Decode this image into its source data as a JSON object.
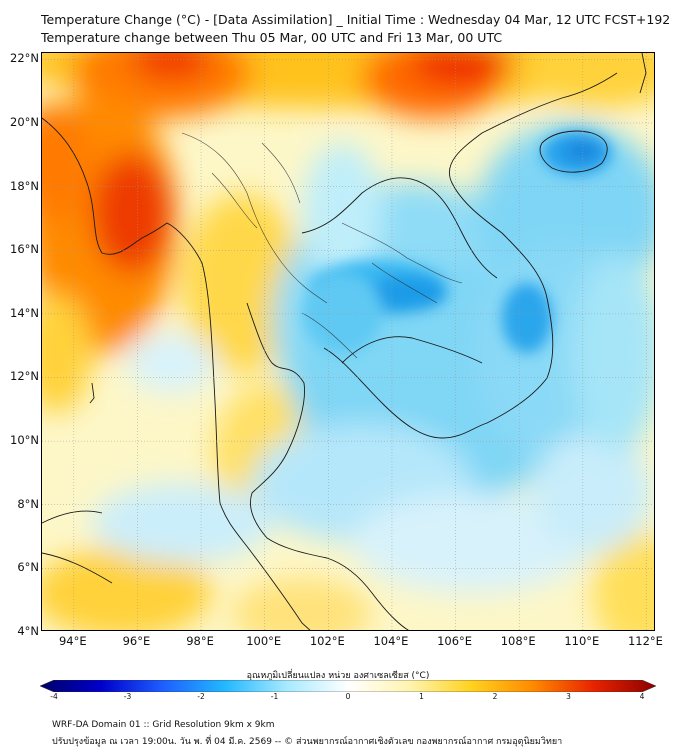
{
  "title": {
    "line1": "Temperature Change (°C) - [Data Assimilation] _ Initial Time : Wednesday 04 Mar, 12 UTC FCST+192",
    "line2": "Temperature change between Thu 05 Mar, 00 UTC and Fri 13 Mar, 00 UTC"
  },
  "map": {
    "lat_labels": [
      "22°N",
      "20°N",
      "18°N",
      "16°N",
      "14°N",
      "12°N",
      "10°N",
      "8°N",
      "6°N",
      "4°N"
    ],
    "lon_labels": [
      "94°E",
      "96°E",
      "98°E",
      "100°E",
      "102°E",
      "104°E",
      "106°E",
      "108°E",
      "110°E",
      "112°E"
    ],
    "lat_range": [
      4,
      22.2
    ],
    "lon_range": [
      93,
      112.3
    ],
    "background_color": "#fdf7c8",
    "coast_color": "#1a1a1a"
  },
  "colorbar": {
    "title": "อุณหภูมิเปลี่ยนแปลง หน่วย องศาเซลเซียส (°C)",
    "ticks": [
      "-4",
      "-3",
      "-2",
      "-1",
      "0",
      "1",
      "2",
      "3",
      "4"
    ],
    "range": [
      -4,
      4
    ],
    "colors": [
      "#000066",
      "#0000cc",
      "#1e5fff",
      "#22b8ff",
      "#a6eaff",
      "#ffffff",
      "#fff4b0",
      "#ffd21f",
      "#ff8a00",
      "#e82200",
      "#8b0000"
    ]
  },
  "footer": {
    "line1": "WRF-DA Domain 01 :: Grid Resolution 9km x 9km",
    "line2": "ปรับปรุงข้อมูล ณ เวลา 19:00น. วัน พ. ที่ 04 มี.ค. 2569 -- © ส่วนพยากรณ์อากาศเชิงตัวเลข กองพยากรณ์อากาศ กรมอุตุนิยมวิทยา"
  }
}
